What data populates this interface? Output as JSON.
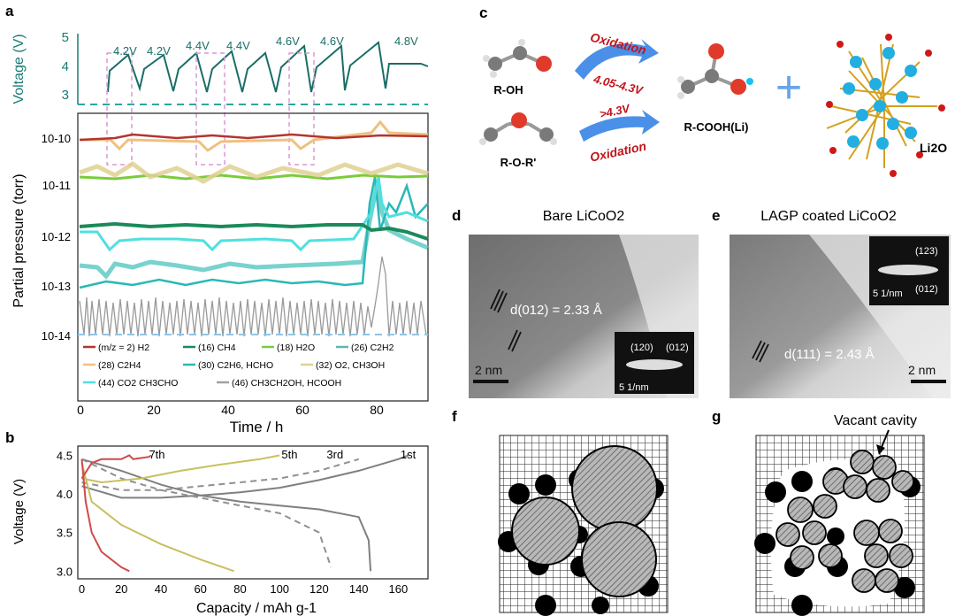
{
  "panel_letters": {
    "a": "a",
    "b": "b",
    "c": "c",
    "d": "d",
    "e": "e",
    "f": "f",
    "g": "g"
  },
  "colors": {
    "teal": "#1a7a74",
    "dash_teal": "#2aa6a0",
    "pink_dash": "#d89ad4",
    "light_blue": "#8ec5e8"
  },
  "panel_a": {
    "voltage_ylabel": "Voltage (V)",
    "pressure_ylabel": "Partial pressure (torr)",
    "xlabel": "Time / h",
    "voltage_ticks": [
      "5",
      "4",
      "3"
    ],
    "pressure_ticks": [
      "10-10",
      "10-11",
      "10-12",
      "10-13",
      "10-14"
    ],
    "x_ticks": [
      "0",
      "20",
      "40",
      "60",
      "80"
    ],
    "voltage_labels": [
      "4.2V",
      "4.2V",
      "4.4V",
      "4.4V",
      "4.6V",
      "4.6V",
      "4.8V"
    ],
    "legend": [
      {
        "label": "(m/z = 2) H2",
        "color": "#b5342e"
      },
      {
        "label": "(16) CH4",
        "color": "#1b8a5a"
      },
      {
        "label": "(18) H2O",
        "color": "#7acc3a"
      },
      {
        "label": "(26) C2H2",
        "color": "#5ab8b0"
      },
      {
        "label": "(28) C2H4",
        "color": "#f0c080"
      },
      {
        "label": "(30) C2H6, HCHO",
        "color": "#2ab8b8"
      },
      {
        "label": "(32) O2, CH3OH",
        "color": "#e0d090"
      },
      {
        "label": "(44) CO2 CH3CHO",
        "color": "#4fe0e0"
      },
      {
        "label": "(46) CH3CH2OH, HCOOH",
        "color": "#a0a0a0"
      }
    ]
  },
  "chart_data": [
    {
      "type": "line",
      "title": "",
      "xlabel": "Capacity / mAh g-1",
      "ylabel": "Voltage (V)",
      "xlim": [
        -2,
        175
      ],
      "ylim": [
        2.9,
        4.62
      ],
      "x_ticks": [
        "0",
        "20",
        "40",
        "60",
        "80",
        "100",
        "120",
        "140",
        "160"
      ],
      "y_ticks": [
        "4.5",
        "4.0",
        "3.5",
        "3.0"
      ],
      "series": [
        {
          "name": "1st",
          "color": "#808080",
          "charge_x": [
            0,
            20,
            40,
            60,
            80,
            100,
            120,
            140,
            160,
            165
          ],
          "charge_y": [
            4.1,
            3.95,
            3.95,
            3.98,
            4.02,
            4.08,
            4.18,
            4.3,
            4.45,
            4.5
          ],
          "discharge_x": [
            0,
            20,
            40,
            60,
            80,
            100,
            120,
            140,
            145,
            146
          ],
          "discharge_y": [
            4.45,
            4.3,
            4.12,
            3.98,
            3.9,
            3.85,
            3.8,
            3.7,
            3.4,
            3.0
          ]
        },
        {
          "name": "3rd",
          "color": "#909090",
          "charge_x": [
            0,
            20,
            40,
            60,
            80,
            100,
            120,
            140
          ],
          "charge_y": [
            4.15,
            4.05,
            4.05,
            4.1,
            4.15,
            4.2,
            4.3,
            4.45
          ],
          "discharge_x": [
            0,
            20,
            40,
            60,
            80,
            100,
            120,
            126
          ],
          "discharge_y": [
            4.45,
            4.2,
            4.05,
            3.95,
            3.85,
            3.75,
            3.5,
            3.05
          ]
        },
        {
          "name": "5th",
          "color": "#c8c060",
          "charge_x": [
            0,
            10,
            30,
            50,
            70,
            90,
            100
          ],
          "charge_y": [
            4.2,
            4.15,
            4.2,
            4.3,
            4.38,
            4.45,
            4.5
          ],
          "discharge_x": [
            0,
            5,
            20,
            40,
            60,
            77
          ],
          "discharge_y": [
            4.4,
            3.9,
            3.6,
            3.35,
            3.15,
            3.0
          ]
        },
        {
          "name": "7th",
          "color": "#d04a4a",
          "charge_x": [
            0,
            5,
            10,
            20,
            24,
            26,
            34,
            35
          ],
          "charge_y": [
            4.2,
            4.4,
            4.45,
            4.45,
            4.5,
            4.45,
            4.48,
            4.5
          ],
          "discharge_x": [
            0,
            2,
            5,
            10,
            15,
            20,
            24
          ],
          "discharge_y": [
            4.45,
            3.9,
            3.5,
            3.25,
            3.15,
            3.05,
            3.0
          ]
        }
      ],
      "series_labels": [
        "7th",
        "5th",
        "3rd",
        "1st"
      ]
    }
  ],
  "panel_c": {
    "alcohol": "R-OH",
    "ether": "R-O-R'",
    "oxidation_top": "Oxidation",
    "range_top": "4.05-4.3V",
    "range_bottom": ">4.3V",
    "oxidation_bottom": "Oxidation",
    "acid": "R-COOH(Li)",
    "plus": "+",
    "li2o": "Li2O"
  },
  "panel_d": {
    "title": "Bare LiCoO2",
    "d_label": "d(012) = 2.33 Å",
    "scale": "2 nm",
    "saed_a": "(120)",
    "saed_b": "(012)",
    "saed_scale": "5 1/nm"
  },
  "panel_e": {
    "title": "LAGP coated LiCoO2",
    "d_label": "d(111) = 2.43 Å",
    "scale": "2 nm",
    "saed_a": "(123)",
    "saed_b": "(012)",
    "saed_scale": "5 1/nm"
  },
  "panel_g": {
    "annotation": "Vacant cavity"
  }
}
